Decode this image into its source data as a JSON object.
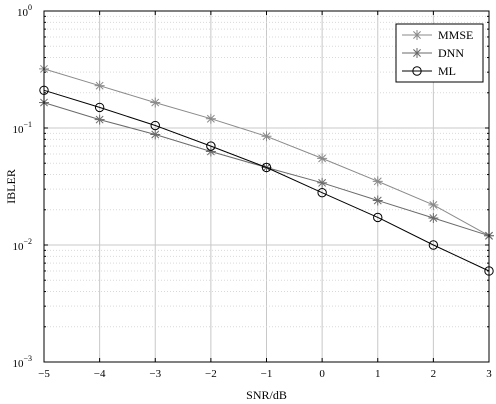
{
  "chart_data": {
    "type": "line",
    "xlabel": "SNR/dB",
    "ylabel": "IBLER",
    "xlim": [
      -5,
      3
    ],
    "ylim": [
      0.001,
      1
    ],
    "yscale": "log",
    "grid": true,
    "legend_position": "top-right",
    "x_ticks": [
      -5,
      -4,
      -3,
      -2,
      -1,
      0,
      1,
      2,
      3
    ],
    "x_tick_labels": [
      "−5",
      "−4",
      "−3",
      "−2",
      "−1",
      "0",
      "1",
      "2",
      "3"
    ],
    "y_ticks": [
      {
        "value": 1,
        "base": "10",
        "exp": "0"
      },
      {
        "value": 0.1,
        "base": "10",
        "exp": "−1"
      },
      {
        "value": 0.01,
        "base": "10",
        "exp": "−2"
      },
      {
        "value": 0.001,
        "base": "10",
        "exp": "−3"
      }
    ],
    "series": [
      {
        "name": "MMSE",
        "marker": "asterisk",
        "color": "#8a8a8a",
        "x": [
          -5,
          -4,
          -3,
          -2,
          -1,
          0,
          1,
          2,
          3
        ],
        "y": [
          0.32,
          0.23,
          0.165,
          0.12,
          0.085,
          0.055,
          0.035,
          0.022,
          0.012
        ]
      },
      {
        "name": "DNN",
        "marker": "asterisk",
        "color": "#6a6a6a",
        "x": [
          -5,
          -4,
          -3,
          -2,
          -1,
          0,
          1,
          2,
          3
        ],
        "y": [
          0.165,
          0.118,
          0.088,
          0.063,
          0.046,
          0.034,
          0.024,
          0.017,
          0.012
        ]
      },
      {
        "name": "ML",
        "marker": "circle",
        "color": "#000000",
        "x": [
          -5,
          -4,
          -3,
          -2,
          -1,
          0,
          1,
          2,
          3
        ],
        "y": [
          0.21,
          0.15,
          0.105,
          0.07,
          0.046,
          0.028,
          0.0172,
          0.01,
          0.006
        ]
      }
    ]
  }
}
